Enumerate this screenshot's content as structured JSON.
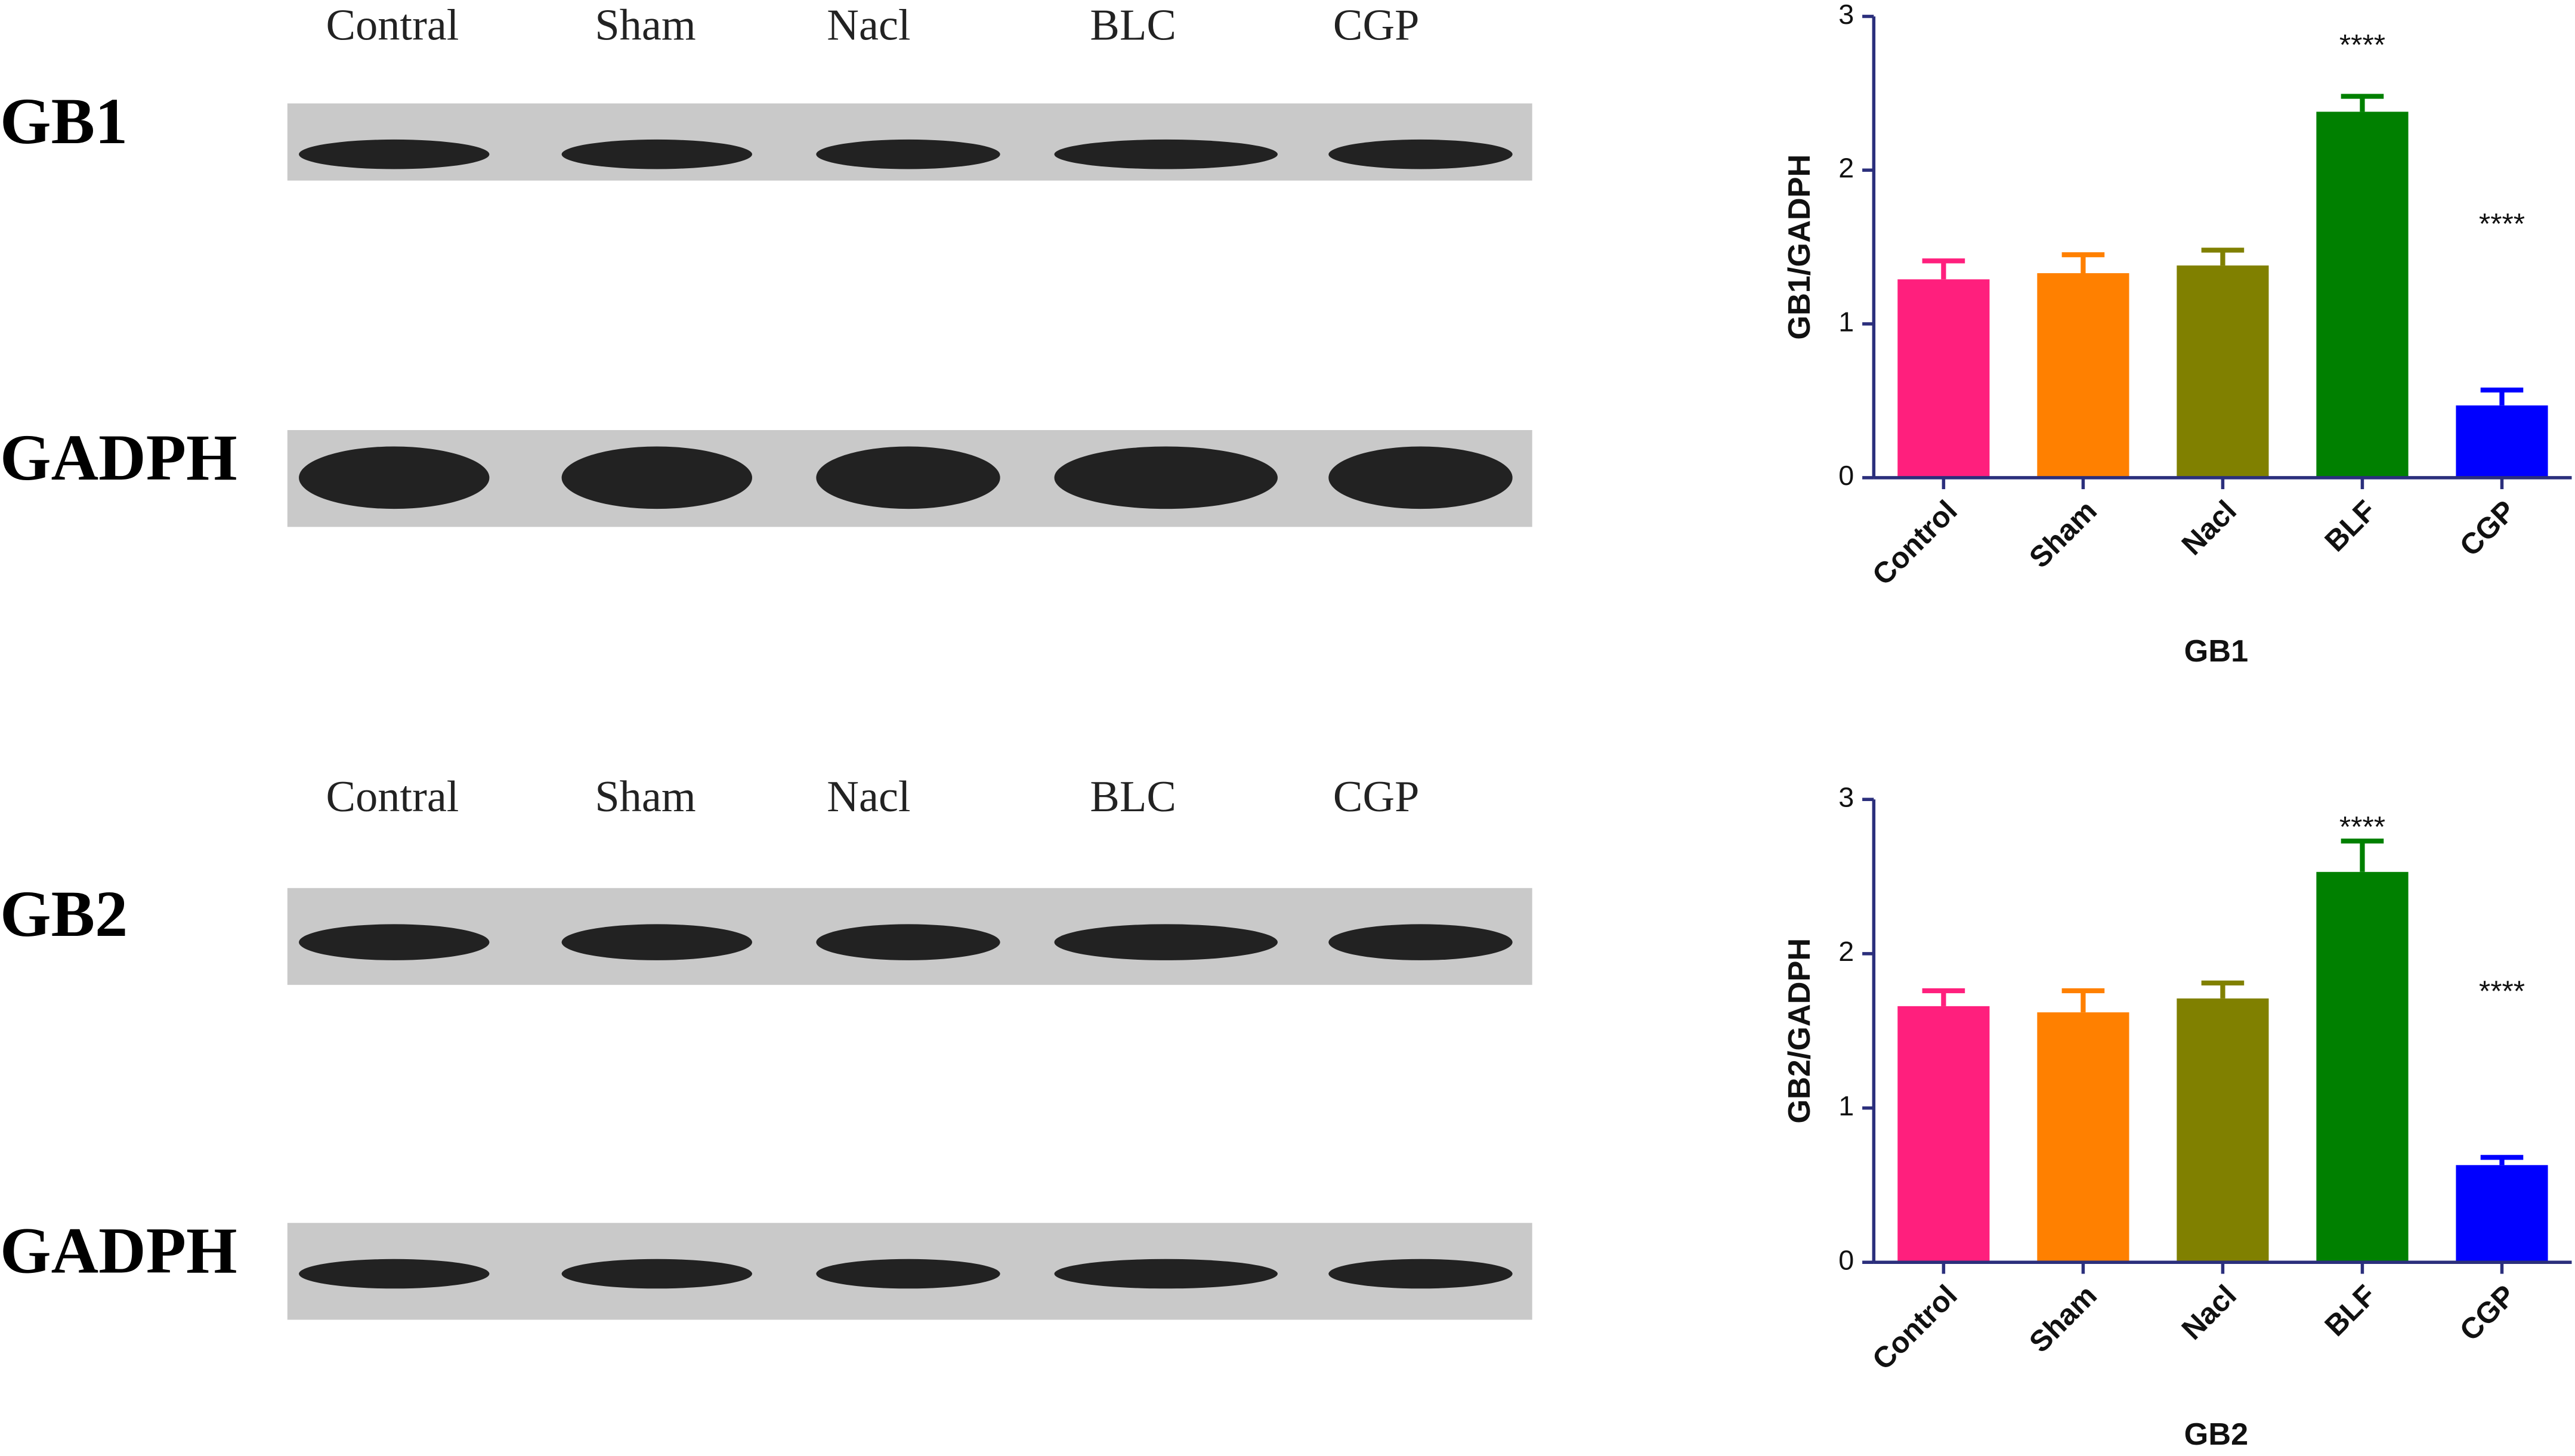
{
  "blots": [
    {
      "lanes": [
        "Contral",
        "Sham",
        "Nacl",
        "BLC",
        "CGP"
      ],
      "rows": [
        "GB1",
        "GADPH"
      ]
    },
    {
      "lanes": [
        "Contral",
        "Sham",
        "Nacl",
        "BLC",
        "CGP"
      ],
      "rows": [
        "GB2",
        "GADPH"
      ]
    }
  ],
  "chart_data": [
    {
      "type": "bar",
      "y_label": "GB1/GADPH",
      "x_label": "GB1",
      "categories": [
        "Control",
        "Sham",
        "Nacl",
        "BLF",
        "CGP"
      ],
      "values": [
        1.29,
        1.33,
        1.38,
        2.38,
        0.47
      ],
      "errors": [
        0.12,
        0.12,
        0.1,
        0.1,
        0.1
      ],
      "colors": [
        "#ff1f7d",
        "#ff8000",
        "#808000",
        "#008000",
        "#0000ff"
      ],
      "annotations": [
        {
          "text": "****",
          "x": "BLF"
        },
        {
          "text": "****",
          "x": "CGP"
        }
      ],
      "ylim": [
        0,
        3
      ],
      "yticks": [
        0,
        1,
        2,
        3
      ],
      "grid": false
    },
    {
      "type": "bar",
      "y_label": "GB2/GADPH",
      "x_label": "GB2",
      "categories": [
        "Control",
        "Sham",
        "Nacl",
        "BLF",
        "CGP"
      ],
      "values": [
        1.66,
        1.62,
        1.71,
        2.53,
        0.63
      ],
      "errors": [
        0.1,
        0.14,
        0.1,
        0.2,
        0.05
      ],
      "colors": [
        "#ff1f7d",
        "#ff8000",
        "#808000",
        "#008000",
        "#0000ff"
      ],
      "annotations": [
        {
          "text": "****",
          "x": "BLF"
        },
        {
          "text": "****",
          "x": "CGP"
        }
      ],
      "ylim": [
        0,
        3
      ],
      "yticks": [
        0,
        1,
        2,
        3
      ],
      "grid": false
    }
  ]
}
